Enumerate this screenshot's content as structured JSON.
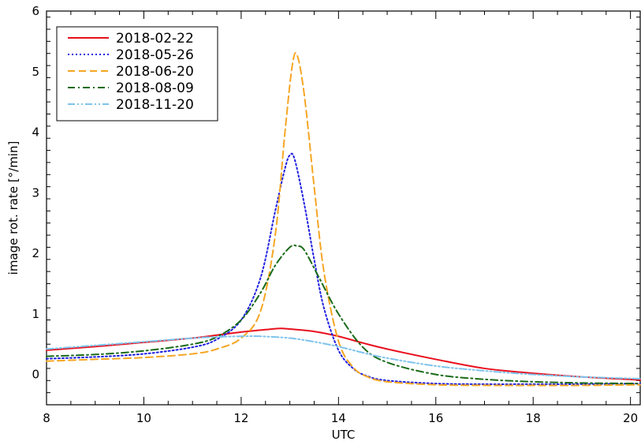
{
  "chart_data": {
    "type": "line",
    "title": "",
    "xlabel": "UTC",
    "ylabel": "image rot. rate [°/min]",
    "xlim": [
      8,
      20.2
    ],
    "ylim": [
      -0.5,
      6
    ],
    "x_ticks": [
      8,
      10,
      12,
      14,
      16,
      18,
      20
    ],
    "y_ticks": [
      0,
      1,
      2,
      3,
      4,
      5,
      6
    ],
    "grid": false,
    "legend_position": "top-left",
    "series": [
      {
        "name": "2018-02-22",
        "color": "#e8101e",
        "style": "solid",
        "x": [
          8,
          9,
          10,
          11,
          11.5,
          12,
          12.5,
          12.8,
          13,
          13.5,
          14,
          14.5,
          15,
          16,
          17,
          18,
          19,
          20.2
        ],
        "y": [
          0.4,
          0.46,
          0.53,
          0.6,
          0.65,
          0.7,
          0.74,
          0.76,
          0.75,
          0.71,
          0.63,
          0.52,
          0.42,
          0.25,
          0.1,
          0.02,
          -0.04,
          -0.09
        ]
      },
      {
        "name": "2018-05-26",
        "color": "#1f1fe0",
        "style": "dotted",
        "x": [
          8,
          9,
          10,
          11,
          11.5,
          12,
          12.4,
          12.7,
          12.9,
          13.0,
          13.1,
          13.3,
          13.5,
          13.7,
          14,
          14.3,
          14.6,
          15,
          16,
          17,
          18,
          19,
          20.2
        ],
        "y": [
          0.26,
          0.29,
          0.34,
          0.45,
          0.58,
          0.9,
          1.6,
          2.7,
          3.4,
          3.62,
          3.55,
          2.8,
          1.9,
          1.1,
          0.4,
          0.1,
          -0.03,
          -0.1,
          -0.15,
          -0.16,
          -0.16,
          -0.16,
          -0.15
        ]
      },
      {
        "name": "2018-06-20",
        "color": "#f5a623",
        "style": "dashed",
        "x": [
          8,
          9,
          10,
          11,
          11.5,
          12,
          12.4,
          12.7,
          12.9,
          13.05,
          13.15,
          13.3,
          13.5,
          13.7,
          14,
          14.3,
          14.6,
          15,
          16,
          17,
          18,
          19,
          20.2
        ],
        "y": [
          0.22,
          0.25,
          0.28,
          0.34,
          0.42,
          0.6,
          1.05,
          2.3,
          4.0,
          5.1,
          5.27,
          4.6,
          3.1,
          1.7,
          0.55,
          0.12,
          -0.04,
          -0.12,
          -0.17,
          -0.18,
          -0.18,
          -0.18,
          -0.17
        ]
      },
      {
        "name": "2018-08-09",
        "color": "#1a6b1a",
        "style": "dash-dot",
        "x": [
          8,
          9,
          10,
          11,
          11.5,
          12,
          12.4,
          12.7,
          13.0,
          13.15,
          13.3,
          13.6,
          14,
          14.5,
          15,
          16,
          17,
          18,
          19,
          20.2
        ],
        "y": [
          0.3,
          0.33,
          0.39,
          0.5,
          0.62,
          0.9,
          1.35,
          1.8,
          2.1,
          2.12,
          2.05,
          1.6,
          1.0,
          0.45,
          0.2,
          0.0,
          -0.08,
          -0.12,
          -0.14,
          -0.15
        ]
      },
      {
        "name": "2018-11-20",
        "color": "#7ec3ec",
        "style": "dash-dot-dot",
        "x": [
          8,
          9,
          10,
          11,
          11.5,
          12,
          12.4,
          13,
          13.5,
          14,
          14.5,
          15,
          16,
          17,
          18,
          19,
          20.2
        ],
        "y": [
          0.42,
          0.48,
          0.54,
          0.6,
          0.62,
          0.63,
          0.63,
          0.6,
          0.54,
          0.46,
          0.36,
          0.27,
          0.14,
          0.06,
          0.0,
          -0.04,
          -0.07
        ]
      }
    ]
  }
}
